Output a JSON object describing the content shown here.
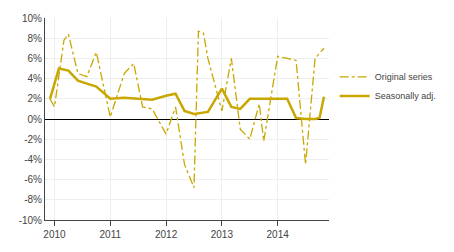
{
  "chart_data": {
    "type": "line",
    "series": [
      {
        "name": "Original series",
        "color": "#C8A800",
        "line_style": "dashdot",
        "x": [
          2009.92,
          2010.0,
          2010.17,
          2010.25,
          2010.42,
          2010.58,
          2010.75,
          2011.0,
          2011.25,
          2011.42,
          2011.58,
          2011.75,
          2012.0,
          2012.17,
          2012.33,
          2012.5,
          2012.58,
          2012.67,
          2012.75,
          2013.0,
          2013.17,
          2013.33,
          2013.5,
          2013.67,
          2013.75,
          2014.0,
          2014.17,
          2014.33,
          2014.5,
          2014.67,
          2014.83
        ],
        "values": [
          2.0,
          1.2,
          7.8,
          8.4,
          4.5,
          4.2,
          6.6,
          0.2,
          4.5,
          5.5,
          1.2,
          1.0,
          -1.5,
          1.2,
          -4.5,
          -6.8,
          8.7,
          8.5,
          6.0,
          0.8,
          6.0,
          -1.0,
          -2.0,
          1.5,
          -2.2,
          6.2,
          6.0,
          5.8,
          -4.5,
          6.0,
          7.0
        ]
      },
      {
        "name": "Seasonally adj.",
        "color": "#C8A800",
        "line_style": "solid",
        "x": [
          2009.92,
          2010.08,
          2010.25,
          2010.42,
          2010.58,
          2010.75,
          2011.0,
          2011.25,
          2011.5,
          2011.75,
          2012.0,
          2012.17,
          2012.33,
          2012.5,
          2012.75,
          2013.0,
          2013.17,
          2013.33,
          2013.5,
          2013.75,
          2014.0,
          2014.17,
          2014.33,
          2014.5,
          2014.67,
          2014.75,
          2014.83
        ],
        "values": [
          2.0,
          5.0,
          4.8,
          3.8,
          3.5,
          3.2,
          2.0,
          2.1,
          2.0,
          1.9,
          2.3,
          2.5,
          0.8,
          0.5,
          0.7,
          3.0,
          1.2,
          1.0,
          2.0,
          2.0,
          2.0,
          2.0,
          0.1,
          0.0,
          0.0,
          0.1,
          2.2
        ]
      }
    ],
    "xlim": [
      2009.83,
      2014.92
    ],
    "xticks": [
      2010,
      2011,
      2012,
      2013,
      2014
    ],
    "ylim": [
      -10,
      10
    ],
    "yticks": [
      {
        "value": -10,
        "label": "-10%"
      },
      {
        "value": -8,
        "label": "-8%"
      },
      {
        "value": -6,
        "label": "-6%"
      },
      {
        "value": -4,
        "label": "-4%"
      },
      {
        "value": -2,
        "label": "-2%"
      },
      {
        "value": 0,
        "label": "0%"
      },
      {
        "value": 2,
        "label": "2%"
      },
      {
        "value": 4,
        "label": "4%"
      },
      {
        "value": 6,
        "label": "6%"
      },
      {
        "value": 8,
        "label": "8%"
      },
      {
        "value": 10,
        "label": "10%"
      }
    ],
    "grid": true,
    "legend": "right"
  }
}
